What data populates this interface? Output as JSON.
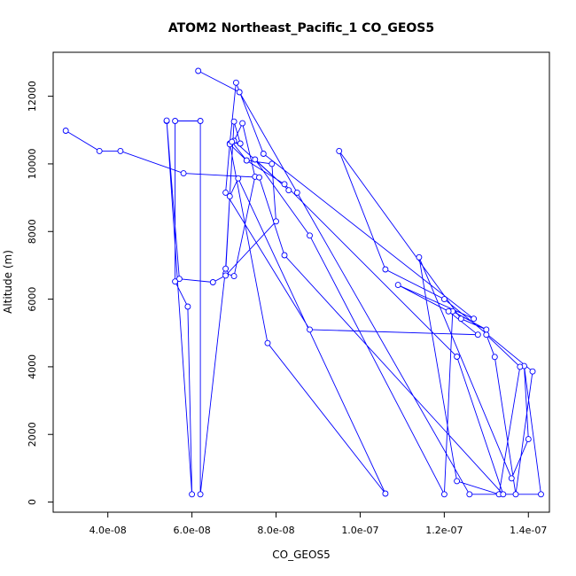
{
  "chart_data": {
    "type": "line",
    "title": "ATOM2 Northeast_Pacific_1 CO_GEOS5",
    "xlabel": "CO_GEOS5",
    "ylabel": "Altitude (m)",
    "xlim": [
      2.7e-08,
      1.45e-07
    ],
    "ylim": [
      -300,
      13300
    ],
    "x_ticks": [
      4e-08,
      6e-08,
      8e-08,
      1e-07,
      1.2e-07,
      1.4e-07
    ],
    "x_tick_labels": [
      "4.0e-08",
      "6.0e-08",
      "8.0e-08",
      "1.0e-07",
      "1.2e-07",
      "1.4e-07"
    ],
    "y_ticks": [
      0,
      2000,
      4000,
      6000,
      8000,
      10000,
      12000
    ],
    "y_tick_labels": [
      "0",
      "2000",
      "4000",
      "6000",
      "8000",
      "10000",
      "12000"
    ],
    "line_color": "#0000ff",
    "marker": "open-circle",
    "series": [
      {
        "x": [
          6.15e-08,
          7.13e-08,
          8.5e-08,
          1.26e-07,
          1.43e-07,
          1.39e-07,
          1.4e-07,
          1.36e-07,
          1.14e-07,
          1.23e-07,
          1.33e-07,
          1.38e-07,
          1.3e-07,
          1.32e-07,
          1.37e-07,
          1.41e-07,
          1.2e-07,
          1.06e-07,
          9.5e-08,
          1.24e-07,
          1.3e-07,
          1.22e-07,
          1.2e-07,
          8.8e-08,
          7.5e-08,
          8.3e-08,
          7e-08,
          7.2e-08,
          7.5e-08,
          7e-08,
          6.8e-08,
          6.9e-08,
          7.1e-08,
          1.06e-07,
          7.8e-08,
          6.9e-08,
          7.05e-08,
          7.7e-08,
          1.27e-07,
          1.09e-07,
          1.21e-07,
          1.28e-07,
          8.8e-08,
          6.8e-08,
          6.9e-08,
          7.3e-08,
          7.9e-08,
          8e-08,
          6.8e-08,
          6.5e-08,
          5.7e-08,
          5.4e-08,
          5.4e-08,
          6e-08,
          5.9e-08,
          5.6e-08,
          5.6e-08,
          6.2e-08,
          6.2e-08,
          6.8e-08,
          7e-08,
          7.15e-08,
          6.95e-08,
          7.3e-08,
          8.2e-08,
          1.23e-07,
          1.34e-07,
          8.2e-08,
          7.6e-08,
          5.8e-08,
          4.3e-08,
          3.8e-08,
          3e-08
        ],
        "y": [
          12750,
          12120,
          9150,
          230,
          230,
          4020,
          1860,
          700,
          7240,
          620,
          230,
          4000,
          4950,
          4290,
          230,
          3860,
          6000,
          6880,
          10380,
          5420,
          5100,
          5640,
          230,
          7880,
          10130,
          9220,
          10680,
          11200,
          9620,
          6680,
          6760,
          9040,
          9570,
          250,
          4700,
          10600,
          12400,
          10300,
          5420,
          6420,
          5640,
          4950,
          5100,
          9150,
          10580,
          10100,
          10000,
          8300,
          6700,
          6500,
          6600,
          11270,
          11280,
          230,
          5780,
          6520,
          11270,
          11270,
          230,
          6900,
          11250,
          10600,
          10650,
          10100,
          9400,
          4300,
          230,
          7300,
          9600,
          9720,
          10380,
          10380,
          10980
        ]
      }
    ]
  }
}
